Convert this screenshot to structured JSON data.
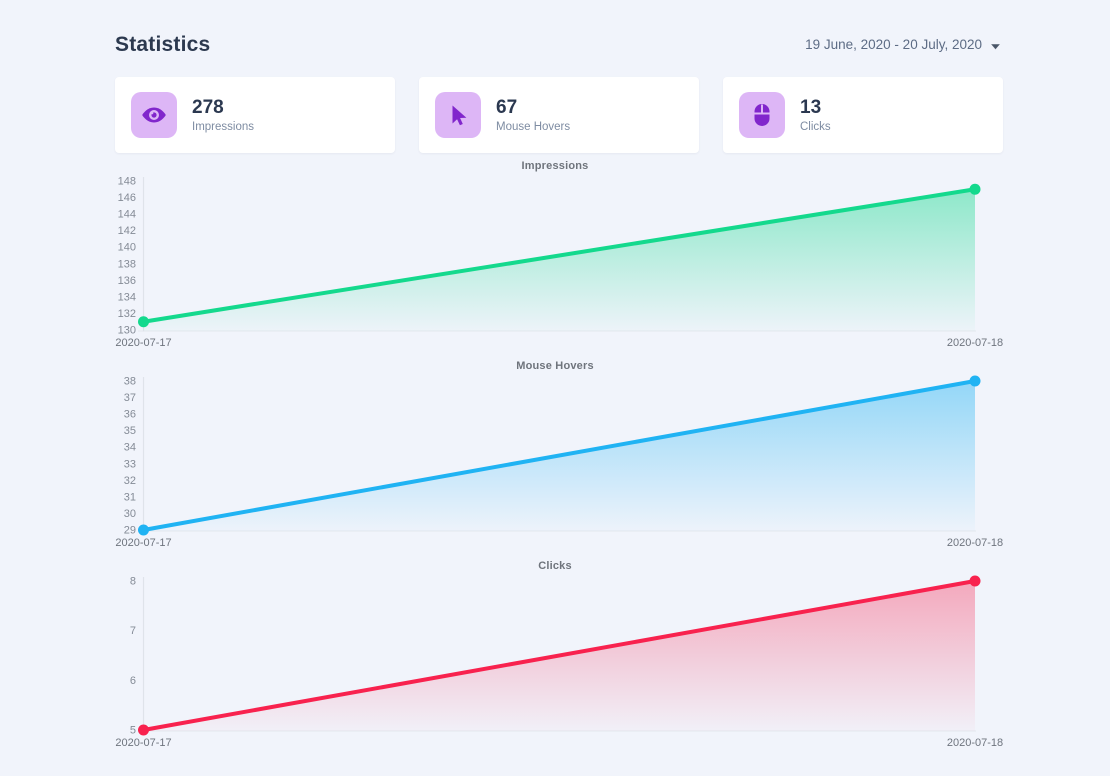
{
  "header": {
    "title": "Statistics",
    "date_range": "19 June, 2020 - 20 July, 2020"
  },
  "cards": [
    {
      "icon": "eye-icon",
      "value": "278",
      "label": "Impressions"
    },
    {
      "icon": "cursor-icon",
      "value": "67",
      "label": "Mouse Hovers"
    },
    {
      "icon": "mouse-icon",
      "value": "13",
      "label": "Clicks"
    }
  ],
  "colors": {
    "page_bg": "#f1f4fb",
    "icon_bg": "#ddb6f6",
    "icon_glyph": "#8126cc",
    "impressions_line": "#14d98d",
    "hovers_line": "#20b3f3",
    "clicks_line": "#f8224e",
    "axis_line": "#dfe3ea",
    "tick_text": "#848b96",
    "x_label_text": "#6e747e"
  },
  "chart_data": [
    {
      "type": "area",
      "title": "Impressions",
      "x": [
        "2020-07-17",
        "2020-07-18"
      ],
      "values": [
        131,
        147
      ],
      "ylim": [
        130,
        148
      ],
      "yticks": [
        130,
        132,
        134,
        136,
        138,
        140,
        142,
        144,
        146,
        148
      ],
      "xlabel": "",
      "ylabel": "",
      "grid": false,
      "legend": "none",
      "color": "#14d98d",
      "area_alpha": 0.45
    },
    {
      "type": "area",
      "title": "Mouse Hovers",
      "x": [
        "2020-07-17",
        "2020-07-18"
      ],
      "values": [
        29,
        38
      ],
      "ylim": [
        29,
        38
      ],
      "yticks": [
        29,
        30,
        31,
        32,
        33,
        34,
        35,
        36,
        37,
        38
      ],
      "xlabel": "",
      "ylabel": "",
      "grid": false,
      "legend": "none",
      "color": "#20b3f3",
      "area_alpha": 0.45
    },
    {
      "type": "area",
      "title": "Clicks",
      "x": [
        "2020-07-17",
        "2020-07-18"
      ],
      "values": [
        5,
        8
      ],
      "ylim": [
        5,
        8
      ],
      "yticks": [
        5,
        6,
        7,
        8
      ],
      "xlabel": "",
      "ylabel": "",
      "grid": false,
      "legend": "none",
      "color": "#f8224e",
      "area_alpha": 0.36
    }
  ]
}
